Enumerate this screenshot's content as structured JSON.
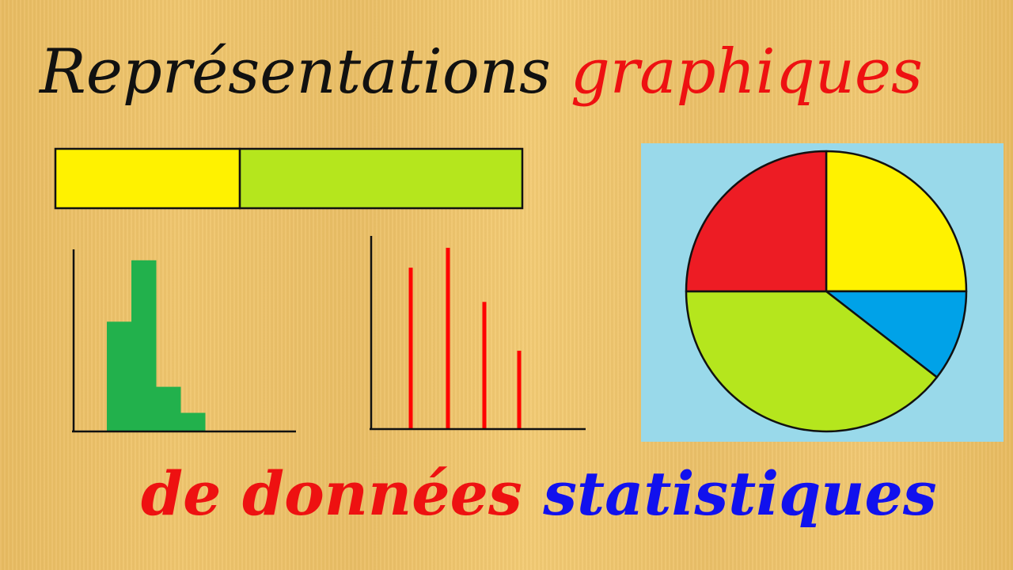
{
  "title": {
    "word1": "Représentations",
    "word2": "graphiques",
    "word3": "de données",
    "word4": "statistiques"
  },
  "colors": {
    "black_text": "#111111",
    "red_text": "#ee1111",
    "blue_text": "#1111ee",
    "yellow": "#fff200",
    "green_bar": "#b5e61d",
    "histogram_green": "#22b14c",
    "stick_red": "#ff0000",
    "pie_red": "#ed1c24",
    "pie_blue": "#00a2e8",
    "pie_background": "#99d9ea"
  },
  "chart_data": [
    {
      "type": "bar",
      "subtype": "stacked-100-percent",
      "segments": [
        {
          "value": 39.5,
          "color": "#fff200"
        },
        {
          "value": 60.5,
          "color": "#b5e61d"
        }
      ]
    },
    {
      "type": "bar",
      "subtype": "histogram",
      "values": [
        59,
        92,
        24,
        10
      ],
      "ylim": [
        0,
        100
      ],
      "color": "#22b14c"
    },
    {
      "type": "bar",
      "subtype": "stick-diagram",
      "values": [
        89,
        100,
        70,
        43
      ],
      "ylim": [
        0,
        100
      ],
      "color": "#ff0000"
    },
    {
      "type": "pie",
      "start": "top",
      "direction": "clockwise",
      "slices": [
        {
          "value": 25,
          "color": "#fff200"
        },
        {
          "value": 10.5,
          "color": "#00a2e8"
        },
        {
          "value": 39.5,
          "color": "#b5e61d"
        },
        {
          "value": 25,
          "color": "#ed1c24"
        }
      ],
      "background": "#99d9ea"
    }
  ]
}
